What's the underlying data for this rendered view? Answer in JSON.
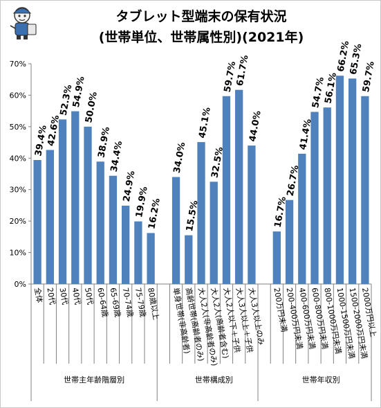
{
  "chart_data": {
    "type": "bar",
    "title_line1": "タブレット型端末の保有状況",
    "title_line2": "(世帯単位、世帯属性別)(2021年)",
    "ylim": [
      0,
      70
    ],
    "y_ticks": [
      "0%",
      "10%",
      "20%",
      "30%",
      "40%",
      "50%",
      "60%",
      "70%"
    ],
    "grid": false,
    "bar_color": "#4f81bd",
    "groups": [
      {
        "label": "世帯主年齢階層別",
        "categories": [
          "全体",
          "20代",
          "30代",
          "40代",
          "50代",
          "60-64歳",
          "65-69歳",
          "70-74歳",
          "75-79歳",
          "80歳以上"
        ],
        "values": [
          39.4,
          42.6,
          52.3,
          54.9,
          50.0,
          38.9,
          34.4,
          24.9,
          19.9,
          16.2
        ],
        "value_labels": [
          "39.4%",
          "42.6%",
          "52.3%",
          "54.9%",
          "50.0%",
          "38.9%",
          "34.4%",
          "24.9%",
          "19.9%",
          "16.2%"
        ]
      },
      {
        "label": "世帯構成別",
        "categories": [
          "単身世帯(非高齢者)",
          "高齢世帯(高齢者のみ)",
          "大人2人(非高齢者のみ)",
          "大人2人(高齢者含む)",
          "大人2人以下＋子供",
          "大人3人以上＋子供",
          "大人3人以上のみ"
        ],
        "values": [
          34.0,
          15.5,
          45.1,
          32.5,
          59.7,
          61.7,
          44.0
        ],
        "value_labels": [
          "34.0%",
          "15.5%",
          "45.1%",
          "32.5%",
          "59.7%",
          "61.7%",
          "44.0%"
        ]
      },
      {
        "label": "世帯年収別",
        "categories": [
          "200万円未満",
          "200-400万円未満",
          "400-600万円未満",
          "600-800万円未満",
          "800-1000万円未満",
          "1000-1500万円未満",
          "1500-2000万円未満",
          "2000万円以上"
        ],
        "values": [
          16.7,
          26.7,
          41.4,
          54.7,
          56.1,
          66.2,
          65.3,
          59.7
        ],
        "value_labels": [
          "16.7%",
          "26.7%",
          "41.4%",
          "54.7%",
          "56.1%",
          "66.2%",
          "65.3%",
          "59.7%"
        ]
      }
    ]
  }
}
